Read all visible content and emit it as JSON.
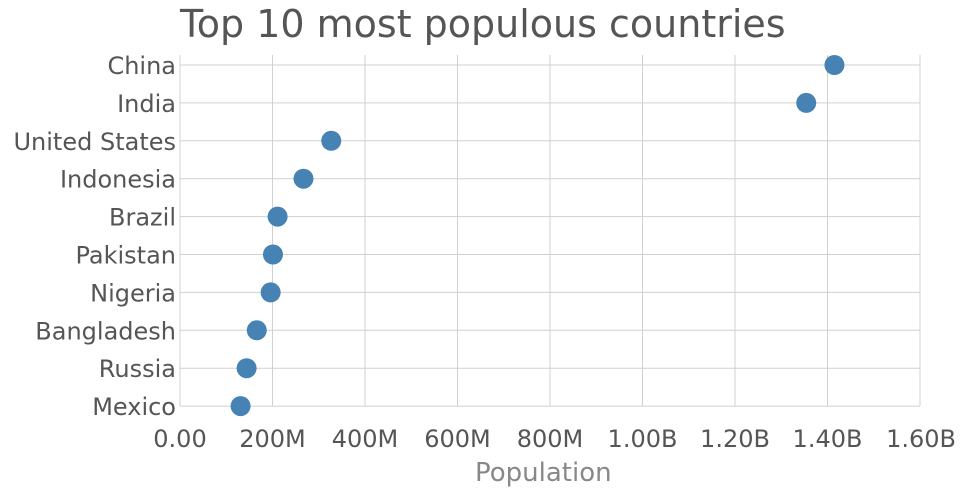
{
  "chart_data": {
    "type": "scatter",
    "title": "Top 10 most populous countries",
    "xlabel": "Population",
    "ylabel": "",
    "xlim": [
      0,
      1600000000
    ],
    "xticks": [
      0,
      200000000,
      400000000,
      600000000,
      800000000,
      1000000000,
      1200000000,
      1400000000,
      1600000000
    ],
    "xtick_labels": [
      "0.00",
      "200M",
      "400M",
      "600M",
      "800M",
      "1.00B",
      "1.20B",
      "1.40B",
      "1.60B"
    ],
    "categories": [
      "China",
      "India",
      "United States",
      "Indonesia",
      "Brazil",
      "Pakistan",
      "Nigeria",
      "Bangladesh",
      "Russia",
      "Mexico"
    ],
    "values": [
      1415000000,
      1354000000,
      327000000,
      267000000,
      211000000,
      201000000,
      196000000,
      166000000,
      144000000,
      131000000
    ],
    "grid": true,
    "marker_color": "#4682b4"
  }
}
